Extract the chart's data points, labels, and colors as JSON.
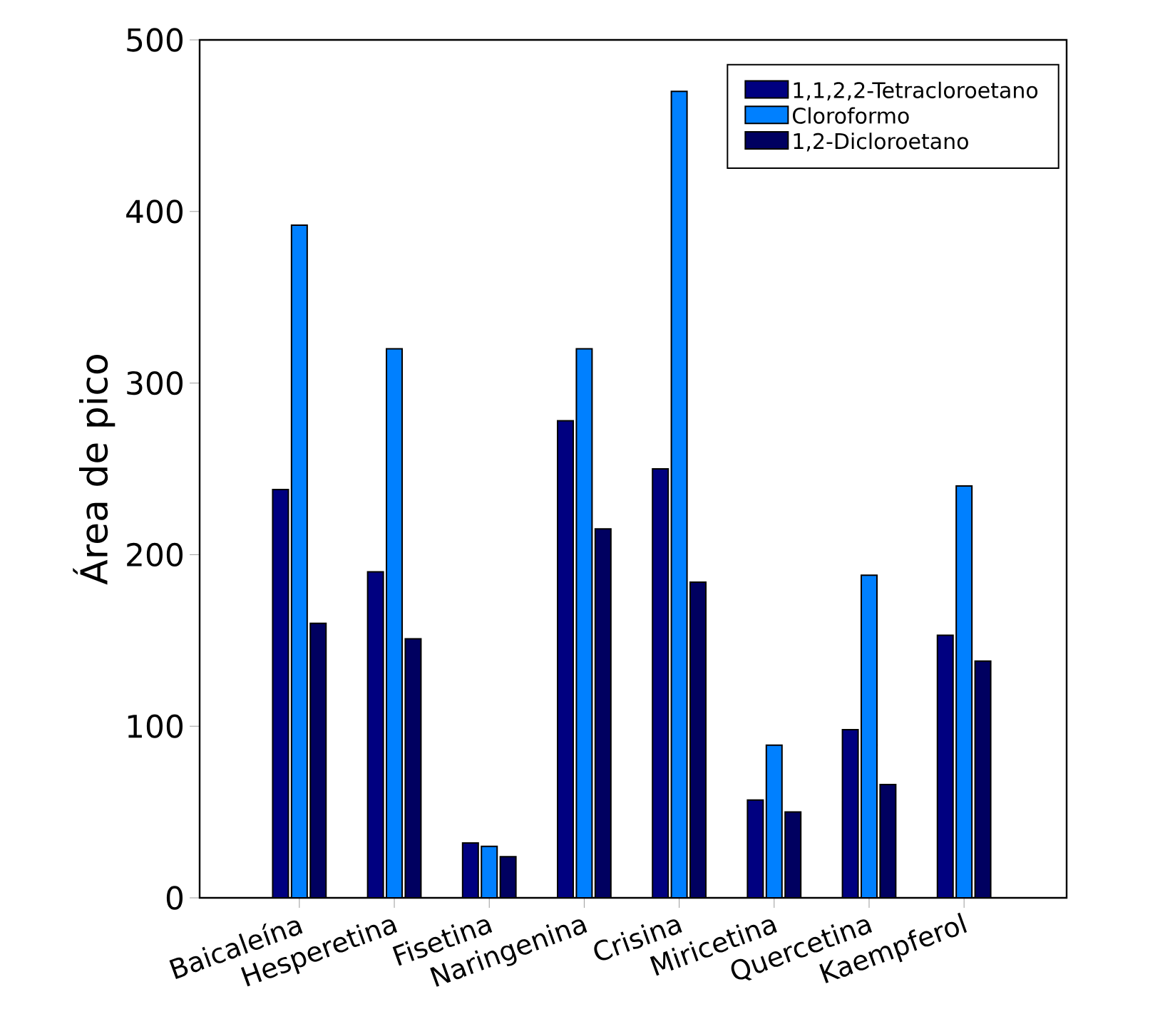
{
  "chart_data": {
    "type": "bar",
    "ylabel": "Área de pico",
    "categories": [
      "Baicaleína",
      "Hesperetina",
      "Fisetina",
      "Naringenina",
      "Crisina",
      "Miricetina",
      "Quercetina",
      "Kaempferol"
    ],
    "series": [
      {
        "name": "1,1,2,2-Tetracloroetano",
        "color": "#000080",
        "values": [
          238,
          190,
          32,
          278,
          250,
          57,
          98,
          153
        ]
      },
      {
        "name": "Cloroformo",
        "color": "#0080ff",
        "values": [
          392,
          320,
          30,
          320,
          470,
          89,
          188,
          240
        ]
      },
      {
        "name": "1,2-Dicloroetano",
        "color": "#000060",
        "values": [
          160,
          151,
          24,
          215,
          184,
          50,
          66,
          138
        ]
      }
    ],
    "ylim": [
      0,
      500
    ],
    "yticks": [
      0,
      100,
      200,
      300,
      400,
      500
    ],
    "legend": "top right",
    "grid": false
  }
}
